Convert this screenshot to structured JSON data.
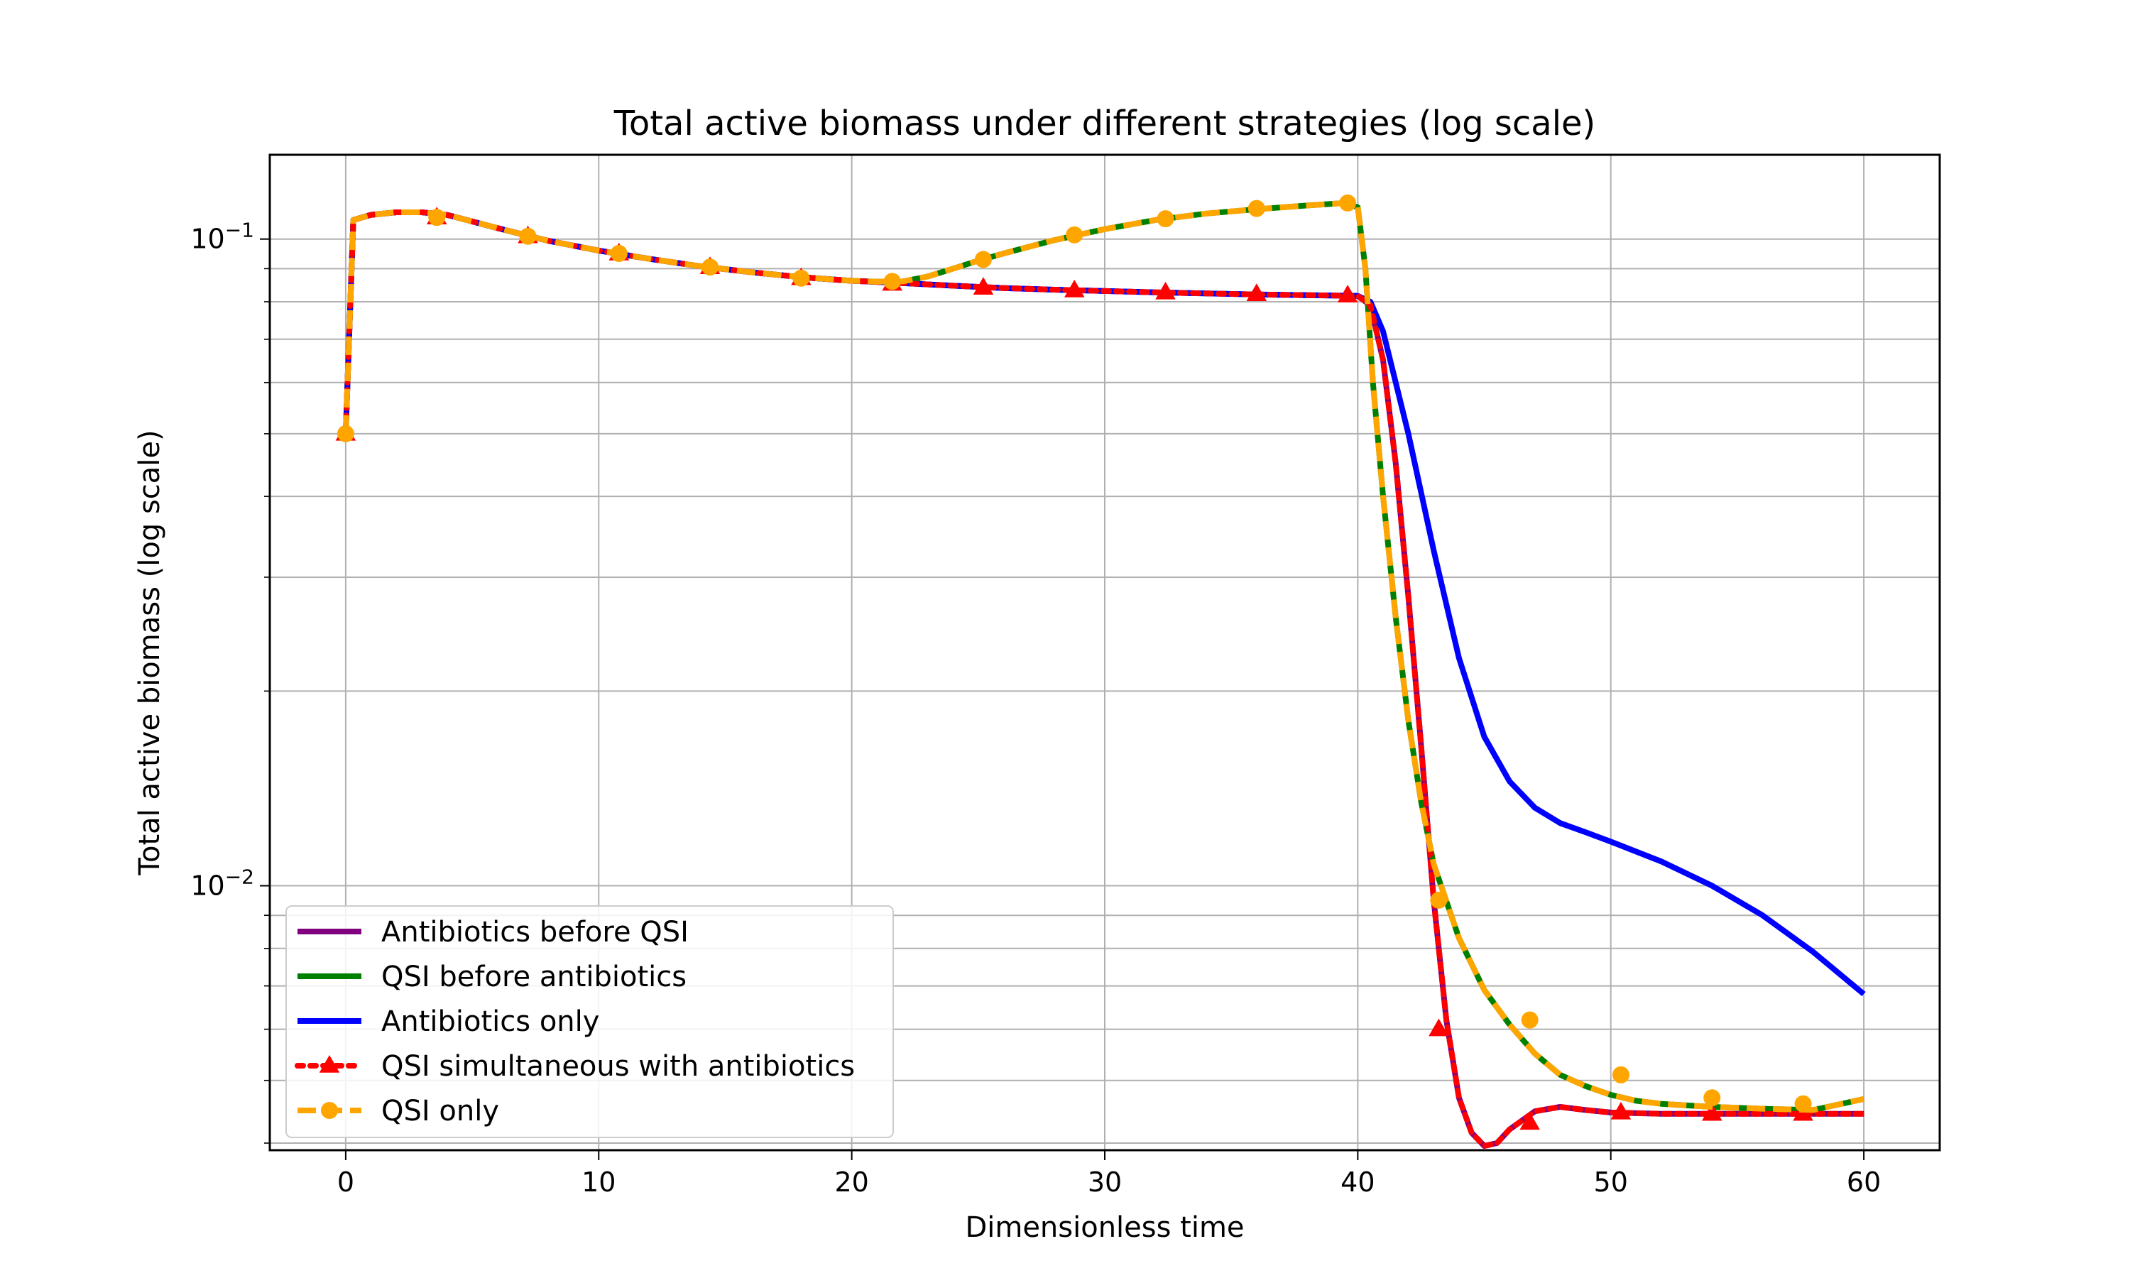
{
  "chart_data": {
    "type": "line",
    "title": "Total active biomass under different strategies (log scale)",
    "xlabel": "Dimensionless time",
    "ylabel": "Total active biomass (log scale)",
    "xlim": [
      -3,
      63
    ],
    "ylim": [
      0.0039,
      0.135
    ],
    "yscale": "log",
    "grid": true,
    "legend_position": "lower-left",
    "x_ticks": [
      0,
      10,
      20,
      30,
      40,
      50,
      60
    ],
    "y_ticks": [
      {
        "value": 0.1,
        "base": "10",
        "exp": "−1"
      },
      {
        "value": 0.01,
        "base": "10",
        "exp": "−2"
      }
    ],
    "series": [
      {
        "name": "Antibiotics before QSI",
        "color": "#800080",
        "style": "solid",
        "marker": "none",
        "x": [
          0,
          0.3,
          1,
          2,
          3,
          4,
          6,
          8,
          10,
          12,
          14,
          16,
          18,
          20,
          22,
          24,
          26,
          28,
          30,
          32,
          34,
          36,
          38,
          40,
          40.5,
          41,
          41.5,
          42,
          42.5,
          43,
          43.5,
          44,
          44.5,
          45,
          45.5,
          46,
          47,
          48,
          49,
          50,
          52,
          55,
          58,
          60
        ],
        "y": [
          0.05,
          0.107,
          0.109,
          0.11,
          0.11,
          0.109,
          0.104,
          0.0994,
          0.096,
          0.0932,
          0.0908,
          0.0889,
          0.0873,
          0.0862,
          0.0855,
          0.0847,
          0.084,
          0.0835,
          0.0831,
          0.0827,
          0.0824,
          0.0821,
          0.0819,
          0.0817,
          0.079,
          0.065,
          0.045,
          0.028,
          0.0165,
          0.0095,
          0.0062,
          0.0047,
          0.00415,
          0.00396,
          0.004,
          0.0042,
          0.00448,
          0.00455,
          0.0045,
          0.00446,
          0.00444,
          0.00444,
          0.00444,
          0.00444
        ]
      },
      {
        "name": "QSI before antibiotics",
        "color": "#008000",
        "style": "solid",
        "marker": "none",
        "x": [
          0,
          0.3,
          1,
          2,
          3,
          4,
          6,
          8,
          10,
          12,
          14,
          16,
          18,
          20,
          21,
          22,
          23,
          24,
          25,
          26,
          28,
          30,
          32,
          34,
          36,
          38,
          39.5,
          40,
          40.3,
          40.6,
          41,
          41.5,
          42,
          42.5,
          43,
          44,
          45,
          46,
          47,
          48,
          49,
          50,
          51,
          52,
          54,
          56,
          58,
          60
        ],
        "y": [
          0.05,
          0.107,
          0.109,
          0.11,
          0.11,
          0.109,
          0.104,
          0.0994,
          0.096,
          0.0932,
          0.0908,
          0.0889,
          0.0873,
          0.0862,
          0.0859,
          0.086,
          0.0875,
          0.09,
          0.0926,
          0.095,
          0.0996,
          0.1036,
          0.107,
          0.1095,
          0.1112,
          0.1127,
          0.1137,
          0.112,
          0.09,
          0.06,
          0.04,
          0.026,
          0.018,
          0.0135,
          0.0108,
          0.0083,
          0.0069,
          0.0061,
          0.0055,
          0.0051,
          0.0049,
          0.00475,
          0.00465,
          0.0046,
          0.00455,
          0.00452,
          0.0045,
          0.00468
        ]
      },
      {
        "name": "Antibiotics only",
        "color": "#0000ff",
        "style": "solid",
        "marker": "none",
        "x": [
          0,
          0.3,
          1,
          2,
          3,
          4,
          6,
          8,
          10,
          12,
          14,
          16,
          18,
          20,
          22,
          24,
          26,
          28,
          30,
          32,
          34,
          36,
          38,
          40,
          40.5,
          41,
          42,
          43,
          44,
          45,
          46,
          47,
          48,
          49,
          50,
          52,
          54,
          56,
          58,
          60
        ],
        "y": [
          0.05,
          0.107,
          0.109,
          0.11,
          0.11,
          0.109,
          0.104,
          0.0994,
          0.096,
          0.0932,
          0.0908,
          0.0889,
          0.0873,
          0.0862,
          0.0855,
          0.0847,
          0.084,
          0.0835,
          0.0831,
          0.0827,
          0.0824,
          0.0821,
          0.0819,
          0.0817,
          0.08,
          0.072,
          0.05,
          0.033,
          0.0225,
          0.017,
          0.0145,
          0.0132,
          0.0125,
          0.0121,
          0.0117,
          0.0109,
          0.01,
          0.009,
          0.0079,
          0.0068
        ]
      },
      {
        "name": "QSI simultaneous with antibiotics",
        "color": "#ff0000",
        "style": "dotted",
        "marker": "triangle",
        "x": [
          0,
          0.3,
          1,
          2,
          3,
          4,
          6,
          8,
          10,
          12,
          14,
          16,
          18,
          20,
          22,
          24,
          26,
          28,
          30,
          32,
          34,
          36,
          38,
          40,
          40.5,
          41,
          41.5,
          42,
          42.5,
          43,
          43.5,
          44,
          44.5,
          45,
          45.5,
          46,
          47,
          48,
          49,
          50,
          52,
          55,
          58,
          60
        ],
        "y": [
          0.05,
          0.107,
          0.109,
          0.11,
          0.11,
          0.109,
          0.104,
          0.0994,
          0.096,
          0.0932,
          0.0908,
          0.0889,
          0.0873,
          0.0862,
          0.0855,
          0.0847,
          0.084,
          0.0835,
          0.0831,
          0.0827,
          0.0824,
          0.0821,
          0.0819,
          0.0817,
          0.079,
          0.065,
          0.045,
          0.028,
          0.0165,
          0.0095,
          0.0062,
          0.0047,
          0.00415,
          0.00396,
          0.004,
          0.0042,
          0.00448,
          0.00455,
          0.0045,
          0.00446,
          0.00444,
          0.00444,
          0.00444,
          0.00444
        ],
        "markers_x": [
          0,
          3.6,
          7.2,
          10.8,
          14.4,
          18.0,
          21.6,
          25.2,
          28.8,
          32.4,
          36.0,
          39.6,
          43.2,
          46.8,
          50.4,
          54.0,
          57.6
        ],
        "markers_y": [
          0.05,
          0.108,
          0.101,
          0.095,
          0.0905,
          0.087,
          0.0853,
          0.0841,
          0.0833,
          0.0827,
          0.0822,
          0.0818,
          0.006,
          0.0043,
          0.00446,
          0.00444,
          0.00444
        ]
      },
      {
        "name": "QSI only",
        "color": "#ffa500",
        "style": "dashed",
        "marker": "circle",
        "x": [
          0,
          0.3,
          1,
          2,
          3,
          4,
          6,
          8,
          10,
          12,
          14,
          16,
          18,
          20,
          21,
          22,
          23,
          24,
          25,
          26,
          28,
          30,
          32,
          34,
          36,
          38,
          39.5,
          40,
          40.3,
          40.6,
          41,
          41.5,
          42,
          42.5,
          43,
          44,
          45,
          46,
          47,
          48,
          49,
          50,
          51,
          52,
          54,
          56,
          58,
          60
        ],
        "y": [
          0.05,
          0.107,
          0.109,
          0.11,
          0.11,
          0.109,
          0.104,
          0.0994,
          0.096,
          0.0932,
          0.0908,
          0.0889,
          0.0873,
          0.0862,
          0.0859,
          0.086,
          0.0875,
          0.09,
          0.0926,
          0.095,
          0.0996,
          0.1036,
          0.107,
          0.1095,
          0.1112,
          0.1127,
          0.1137,
          0.112,
          0.09,
          0.06,
          0.04,
          0.026,
          0.018,
          0.0135,
          0.0108,
          0.0083,
          0.0069,
          0.0061,
          0.0055,
          0.0051,
          0.0049,
          0.00475,
          0.00465,
          0.0046,
          0.00455,
          0.00452,
          0.0045,
          0.00468
        ],
        "markers_x": [
          0,
          3.6,
          7.2,
          10.8,
          14.4,
          18.0,
          21.6,
          25.2,
          28.8,
          32.4,
          36.0,
          39.6,
          43.2,
          46.8,
          50.4,
          54.0,
          57.6
        ],
        "markers_y": [
          0.05,
          0.108,
          0.101,
          0.095,
          0.0905,
          0.087,
          0.086,
          0.093,
          0.1015,
          0.1075,
          0.1115,
          0.1137,
          0.0095,
          0.0062,
          0.0051,
          0.0047,
          0.0046
        ]
      }
    ]
  }
}
